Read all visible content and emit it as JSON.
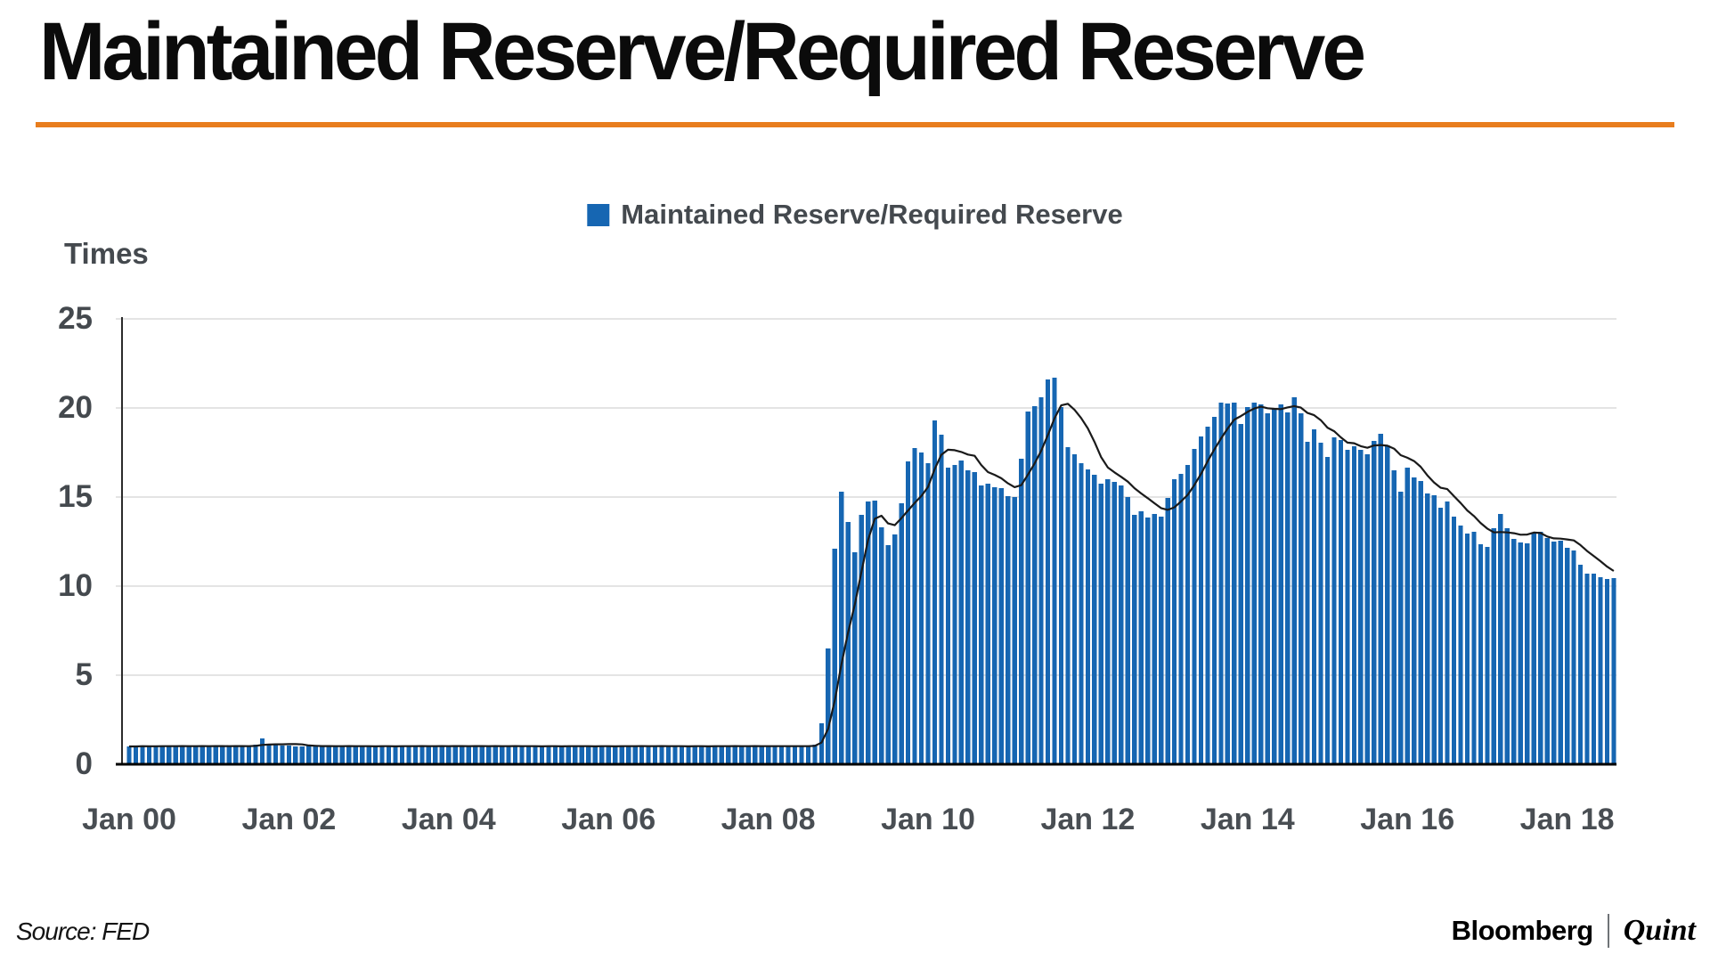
{
  "page": {
    "title": "Maintained Reserve/Required Reserve",
    "source_label": "Source: FED",
    "brand": {
      "bloomberg": "Bloomberg",
      "quint": "Quint"
    }
  },
  "legend": {
    "label": "Maintained Reserve/Required Reserve",
    "swatch_color": "#1666b2"
  },
  "colors": {
    "accent_orange": "#e87d1e",
    "bar_blue": "#1666b2",
    "trend_black": "#1a1a1a",
    "label_gray": "#44494e",
    "gridline_gray": "#c9c9c9"
  },
  "chart_data": {
    "type": "bar",
    "title": "Maintained Reserve/Required Reserve",
    "ylabel": "Times",
    "ylim": [
      0,
      25
    ],
    "y_ticks": [
      0,
      5,
      10,
      15,
      20,
      25
    ],
    "grid": "horizontal",
    "legend_position": "top-center",
    "x_start": "Jan 2000",
    "x_end": "Aug 2018",
    "x_frequency": "monthly",
    "n_points": 224,
    "x_tick_labels": [
      "Jan 00",
      "Jan 02",
      "Jan 04",
      "Jan 06",
      "Jan 08",
      "Jan 10",
      "Jan 12",
      "Jan 14",
      "Jan 16",
      "Jan 18"
    ],
    "bar_color": "#1666b2",
    "overlay_line": {
      "label": "7-month moving average trend",
      "window": 7,
      "color": "#1a1a1a"
    },
    "values": [
      1.0,
      1.0,
      1.05,
      1.0,
      1.0,
      1.05,
      1.0,
      1.0,
      1.05,
      1.0,
      1.0,
      1.05,
      1.0,
      1.05,
      1.0,
      1.0,
      1.05,
      1.0,
      1.0,
      1.1,
      1.45,
      1.15,
      1.1,
      1.05,
      1.05,
      1.0,
      1.0,
      1.05,
      1.0,
      1.0,
      1.05,
      1.0,
      1.0,
      1.05,
      1.0,
      1.0,
      1.0,
      1.0,
      1.05,
      1.0,
      1.0,
      1.05,
      1.0,
      1.0,
      1.05,
      1.0,
      1.0,
      1.05,
      1.0,
      1.05,
      1.0,
      1.0,
      1.05,
      1.0,
      1.0,
      1.05,
      1.0,
      1.0,
      1.05,
      1.0,
      1.0,
      1.0,
      1.0,
      1.05,
      1.0,
      1.0,
      1.05,
      1.0,
      1.0,
      1.0,
      1.0,
      1.05,
      1.0,
      1.0,
      1.05,
      1.0,
      1.0,
      1.05,
      1.0,
      1.0,
      1.05,
      1.0,
      1.0,
      1.0,
      1.0,
      1.05,
      1.0,
      1.0,
      1.05,
      1.0,
      1.0,
      1.05,
      1.0,
      1.0,
      1.05,
      1.0,
      1.0,
      1.0,
      1.05,
      1.0,
      1.0,
      1.05,
      1.0,
      1.1,
      2.3,
      6.5,
      12.1,
      15.3,
      13.6,
      11.9,
      14.0,
      14.75,
      14.8,
      13.3,
      12.3,
      12.9,
      14.65,
      17.0,
      17.75,
      17.5,
      16.9,
      19.3,
      18.5,
      16.65,
      16.8,
      17.05,
      16.5,
      16.4,
      15.65,
      15.75,
      15.55,
      15.5,
      15.05,
      15.0,
      17.15,
      19.8,
      20.1,
      20.6,
      21.6,
      21.7,
      20.05,
      17.8,
      17.4,
      16.9,
      16.55,
      16.25,
      15.75,
      16.0,
      15.85,
      15.65,
      15.0,
      14.0,
      14.2,
      13.85,
      14.05,
      13.9,
      14.95,
      16.0,
      16.3,
      16.8,
      17.7,
      18.4,
      18.95,
      19.5,
      20.3,
      20.25,
      20.3,
      19.1,
      20.05,
      20.3,
      20.2,
      19.7,
      20.0,
      20.2,
      19.75,
      20.6,
      19.7,
      18.1,
      18.8,
      18.05,
      17.25,
      18.35,
      18.2,
      17.65,
      17.85,
      17.65,
      17.4,
      18.15,
      18.55,
      17.9,
      16.5,
      15.3,
      16.65,
      16.1,
      15.9,
      15.2,
      15.1,
      14.4,
      14.75,
      13.9,
      13.4,
      12.95,
      13.05,
      12.35,
      12.2,
      13.25,
      14.05,
      13.25,
      12.65,
      12.45,
      12.4,
      13.0,
      13.05,
      12.7,
      12.5,
      12.55,
      12.15,
      12.0,
      11.2,
      10.7,
      10.7,
      10.5,
      10.4,
      10.45
    ]
  }
}
